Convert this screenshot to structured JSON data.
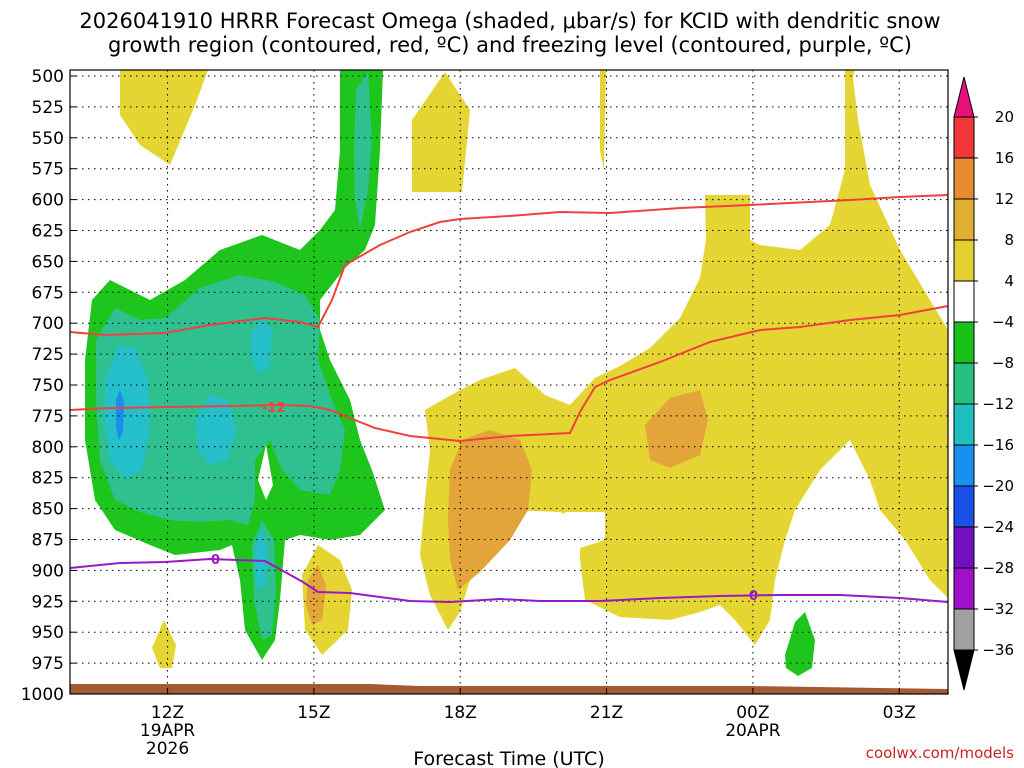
{
  "title_line1": "2026041910 HRRR Forecast Omega (shaded, μbar/s) for KCID with dendritic snow",
  "title_line2": "growth region (contoured, red, ºC) and freezing level (contoured, purple, ºC)",
  "xlabel": "Forecast Time (UTC)",
  "credit": "coolwx.com/models",
  "chart_data": {
    "type": "time-height contour",
    "ylim": [
      1000,
      500
    ],
    "yticks": [
      500,
      525,
      550,
      575,
      600,
      625,
      650,
      675,
      700,
      725,
      750,
      775,
      800,
      825,
      850,
      875,
      900,
      925,
      950,
      975,
      1000
    ],
    "xticks": [
      {
        "hour": 2,
        "lines": [
          "12Z",
          "19APR",
          "2026"
        ]
      },
      {
        "hour": 5,
        "lines": [
          "15Z"
        ]
      },
      {
        "hour": 8,
        "lines": [
          "18Z"
        ]
      },
      {
        "hour": 11,
        "lines": [
          "21Z"
        ]
      },
      {
        "hour": 14,
        "lines": [
          "00Z",
          "20APR"
        ]
      },
      {
        "hour": 17,
        "lines": [
          "03Z"
        ]
      }
    ],
    "xlim": [
      0,
      18
    ],
    "grid": true,
    "colorbar": {
      "labels": [
        "20",
        "16",
        "12",
        "8",
        "4",
        "−4",
        "−8",
        "−12",
        "−16",
        "−20",
        "−24",
        "−28",
        "−32",
        "−36"
      ],
      "colors": [
        "#f03838",
        "#e88a30",
        "#e0b030",
        "#e0d030",
        "#ffffff",
        "#18c018",
        "#28c080",
        "#20c0c0",
        "#1890f0",
        "#1850e8",
        "#7010c0",
        "#a010c8",
        "#a0a0a0"
      ],
      "top_arrow": "#e8107a",
      "bottom_arrow": "#000000"
    },
    "red_contour_labels": [
      "-12"
    ],
    "purple_contour_labels": [
      "0",
      "0"
    ],
    "colors": {
      "yellow": "#e5d532",
      "orange": "#e3a43a",
      "green": "#1dc51d",
      "teal": "#2ec18f",
      "cyan": "#24bfc8",
      "blue": "#1a8cf0",
      "red": "#f04040",
      "purple": "#9a18c8",
      "ground": "#a45a34"
    }
  }
}
